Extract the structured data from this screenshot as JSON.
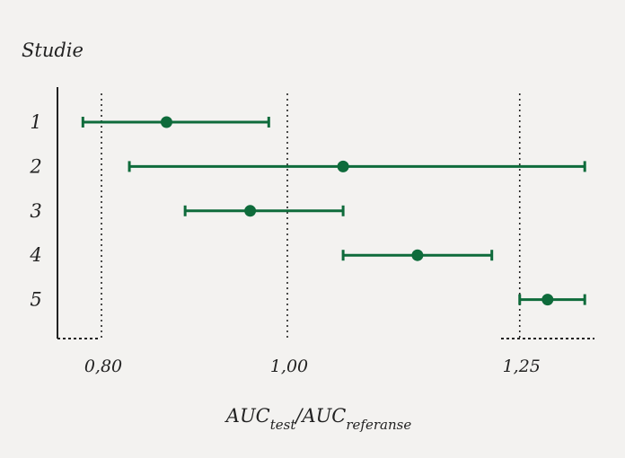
{
  "chart_data": {
    "type": "forest",
    "title": "Studie",
    "xlabel": {
      "main_a": "AUC",
      "sub_a": "test",
      "sep": "/",
      "main_b": "AUC",
      "sub_b": "referanse"
    },
    "ylabel": "",
    "x_ticks": [
      {
        "value": 0.8,
        "label": "0,80"
      },
      {
        "value": 1.0,
        "label": "1,00"
      },
      {
        "value": 1.25,
        "label": "1,25"
      }
    ],
    "reference_lines": [
      0.8,
      1.0,
      1.25
    ],
    "xlim": [
      0.75,
      1.34
    ],
    "grid": false,
    "studies": [
      {
        "label": "1",
        "estimate": 0.87,
        "lower": 0.78,
        "upper": 0.98
      },
      {
        "label": "2",
        "estimate": 1.06,
        "lower": 0.83,
        "upper": 1.32
      },
      {
        "label": "3",
        "estimate": 0.96,
        "lower": 0.89,
        "upper": 1.06
      },
      {
        "label": "4",
        "estimate": 1.14,
        "lower": 1.06,
        "upper": 1.22
      },
      {
        "label": "5",
        "estimate": 1.28,
        "lower": 1.25,
        "upper": 1.32
      }
    ],
    "colors": {
      "marker": "#0e6b3b",
      "axis": "#222222",
      "text": "#222222",
      "background": "#f3f2f0"
    }
  }
}
